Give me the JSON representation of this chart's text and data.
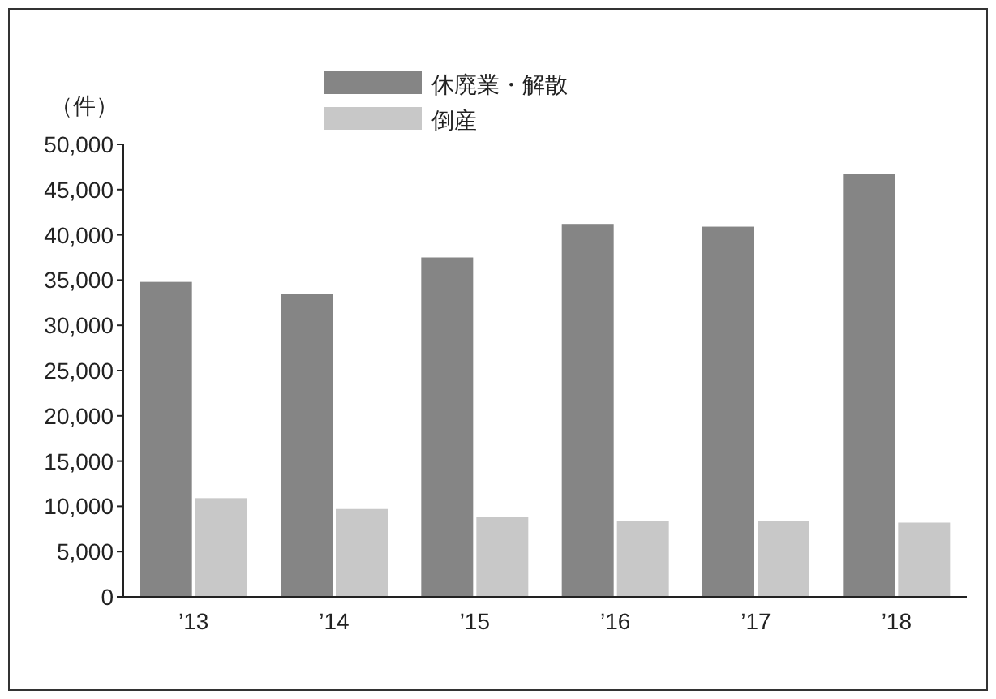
{
  "chart_data": {
    "type": "bar",
    "ylabel": "（件）",
    "categories": [
      "’13",
      "’14",
      "’15",
      "’16",
      "’17",
      "’18"
    ],
    "series": [
      {
        "name": "休廃業・解散",
        "color": "#858585",
        "values": [
          34800,
          33500,
          37500,
          41200,
          40900,
          46700
        ]
      },
      {
        "name": "倒産",
        "color": "#c8c8c8",
        "values": [
          10900,
          9700,
          8800,
          8400,
          8400,
          8200
        ]
      }
    ],
    "ylim": [
      0,
      50000
    ],
    "yticks": [
      0,
      {
        "value": 5000,
        "label": "5,000"
      },
      {
        "value": 10000,
        "label": "10,000"
      },
      {
        "value": 15000,
        "label": "15,000"
      },
      {
        "value": 20000,
        "label": "20,000"
      },
      {
        "value": 25000,
        "label": "25,000"
      },
      {
        "value": 30000,
        "label": "30,000"
      },
      {
        "value": 35000,
        "label": "35,000"
      },
      {
        "value": 40000,
        "label": "40,000"
      },
      {
        "value": 45000,
        "label": "45,000"
      },
      {
        "value": 50000,
        "label": "50,000"
      }
    ],
    "grid": false,
    "legend": "top"
  }
}
